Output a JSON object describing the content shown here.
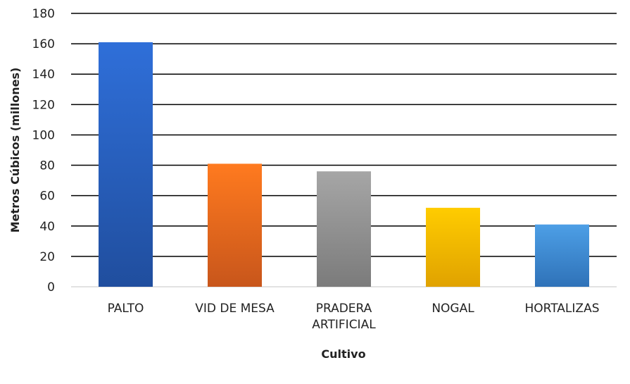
{
  "chart_data": {
    "type": "bar",
    "categories": [
      [
        "PALTO"
      ],
      [
        "VID DE MESA"
      ],
      [
        "PRADERA",
        "ARTIFICIAL"
      ],
      [
        "NOGAL"
      ],
      [
        "HORTALIZAS"
      ]
    ],
    "values": [
      161,
      81,
      76,
      52,
      41
    ],
    "title": "",
    "xlabel": "Cultivo",
    "ylabel": "Metros Cúbicos (millones)",
    "ylim": [
      0,
      180
    ],
    "yticks": [
      0,
      20,
      40,
      60,
      80,
      100,
      120,
      140,
      160,
      180
    ],
    "grid": true,
    "legend": "none",
    "colors": [
      [
        "#2f6fd9",
        "#204e9e"
      ],
      [
        "#ff7a1f",
        "#c8561b"
      ],
      [
        "#a6a6a6",
        "#7b7b7b"
      ],
      [
        "#ffcc00",
        "#e0a200"
      ],
      [
        "#4d9fe6",
        "#2f72b8"
      ]
    ]
  }
}
